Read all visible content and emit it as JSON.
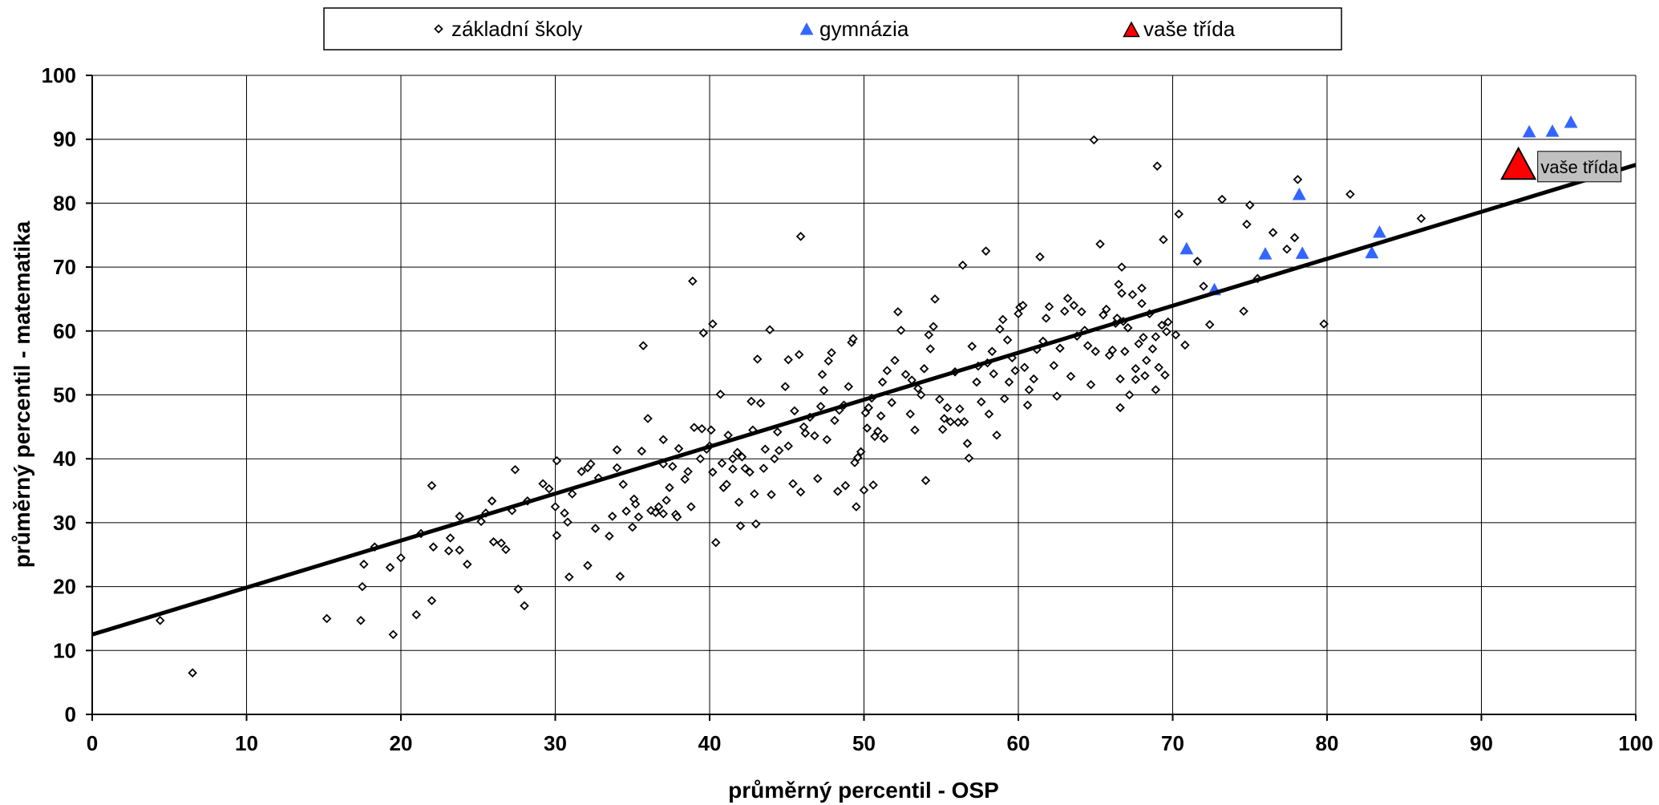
{
  "chart_data": {
    "type": "scatter",
    "xlabel": "průměrný percentil - OSP",
    "ylabel": "průměrný percentil - matematika",
    "xlim": [
      0,
      100
    ],
    "ylim": [
      0,
      100
    ],
    "x_ticks": [
      "0",
      "10",
      "20",
      "30",
      "40",
      "50",
      "60",
      "70",
      "80",
      "90",
      "100"
    ],
    "y_ticks": [
      "0",
      "10",
      "20",
      "30",
      "40",
      "50",
      "60",
      "70",
      "80",
      "90",
      "100"
    ],
    "grid": true,
    "legend_position": "top",
    "legend": [
      {
        "label": "základní školy",
        "marker": "diamond",
        "color": "#000000"
      },
      {
        "label": "gymnázia",
        "marker": "triangle",
        "color": "#3366ff"
      },
      {
        "label": "vaše třída",
        "marker": "triangle-large",
        "color": "#ff0000"
      }
    ],
    "trendline": {
      "x": [
        0,
        100
      ],
      "y": [
        12.5,
        86
      ]
    },
    "callout": {
      "label": "vaše třída"
    },
    "series": [
      {
        "name": "základní školy",
        "color": "#000000",
        "marker": "diamond",
        "points": [
          [
            4.4,
            14.7
          ],
          [
            6.5,
            6.5
          ],
          [
            15.2,
            15.0
          ],
          [
            17.4,
            14.7
          ],
          [
            17.5,
            20.0
          ],
          [
            17.6,
            23.5
          ],
          [
            18.3,
            26.2
          ],
          [
            19.3,
            23.0
          ],
          [
            19.5,
            12.5
          ],
          [
            20.0,
            24.5
          ],
          [
            21.0,
            15.6
          ],
          [
            21.3,
            28.3
          ],
          [
            22.0,
            35.8
          ],
          [
            22.1,
            26.2
          ],
          [
            22.0,
            17.8
          ],
          [
            23.1,
            25.6
          ],
          [
            23.2,
            27.6
          ],
          [
            23.8,
            31.0
          ],
          [
            23.8,
            25.7
          ],
          [
            24.3,
            23.5
          ],
          [
            25.2,
            30.2
          ],
          [
            25.5,
            31.5
          ],
          [
            25.9,
            33.4
          ],
          [
            26.0,
            27.0
          ],
          [
            26.5,
            26.8
          ],
          [
            26.8,
            25.8
          ],
          [
            27.2,
            31.9
          ],
          [
            27.4,
            38.3
          ],
          [
            27.6,
            19.6
          ],
          [
            28.0,
            17.0
          ],
          [
            28.2,
            33.4
          ],
          [
            29.2,
            36.1
          ],
          [
            29.6,
            35.3
          ],
          [
            30.0,
            32.5
          ],
          [
            30.1,
            28.0
          ],
          [
            30.1,
            39.7
          ],
          [
            30.6,
            31.5
          ],
          [
            30.8,
            30.1
          ],
          [
            30.9,
            21.5
          ],
          [
            31.1,
            34.5
          ],
          [
            31.7,
            38.0
          ],
          [
            32.1,
            23.3
          ],
          [
            32.1,
            38.6
          ],
          [
            32.3,
            39.2
          ],
          [
            32.6,
            29.1
          ],
          [
            32.8,
            37.0
          ],
          [
            33.5,
            27.9
          ],
          [
            33.7,
            31.0
          ],
          [
            34.0,
            41.4
          ],
          [
            34.0,
            38.6
          ],
          [
            34.2,
            21.6
          ],
          [
            34.4,
            36.0
          ],
          [
            34.6,
            31.8
          ],
          [
            35.0,
            29.3
          ],
          [
            35.1,
            33.7
          ],
          [
            35.2,
            32.9
          ],
          [
            35.4,
            30.9
          ],
          [
            35.6,
            41.2
          ],
          [
            35.7,
            57.7
          ],
          [
            36.0,
            46.3
          ],
          [
            36.2,
            31.9
          ],
          [
            36.5,
            31.6
          ],
          [
            36.7,
            32.5
          ],
          [
            37.0,
            31.4
          ],
          [
            37.0,
            39.2
          ],
          [
            37.0,
            43.0
          ],
          [
            37.2,
            33.5
          ],
          [
            37.4,
            35.5
          ],
          [
            37.6,
            38.8
          ],
          [
            37.8,
            31.3
          ],
          [
            37.9,
            30.9
          ],
          [
            38.0,
            41.6
          ],
          [
            38.4,
            36.8
          ],
          [
            38.6,
            38.0
          ],
          [
            38.8,
            32.5
          ],
          [
            38.9,
            67.8
          ],
          [
            39.0,
            44.9
          ],
          [
            39.4,
            40.0
          ],
          [
            39.5,
            44.7
          ],
          [
            39.6,
            59.7
          ],
          [
            39.8,
            41.5
          ],
          [
            40.0,
            42.0
          ],
          [
            40.1,
            44.5
          ],
          [
            40.2,
            61.1
          ],
          [
            40.2,
            37.9
          ],
          [
            40.4,
            26.9
          ],
          [
            40.7,
            50.1
          ],
          [
            40.8,
            39.3
          ],
          [
            40.9,
            35.5
          ],
          [
            41.1,
            36.0
          ],
          [
            41.2,
            43.7
          ],
          [
            41.5,
            40.0
          ],
          [
            41.5,
            38.4
          ],
          [
            41.8,
            41.0
          ],
          [
            41.9,
            33.2
          ],
          [
            42.0,
            29.5
          ],
          [
            42.1,
            40.3
          ],
          [
            42.3,
            38.5
          ],
          [
            42.6,
            37.9
          ],
          [
            42.7,
            49.0
          ],
          [
            42.8,
            44.5
          ],
          [
            42.9,
            34.5
          ],
          [
            43.0,
            29.8
          ],
          [
            43.1,
            55.6
          ],
          [
            43.3,
            48.7
          ],
          [
            43.5,
            38.5
          ],
          [
            43.6,
            41.5
          ],
          [
            43.9,
            60.2
          ],
          [
            44.0,
            34.4
          ],
          [
            44.2,
            40.0
          ],
          [
            44.4,
            44.2
          ],
          [
            44.5,
            41.3
          ],
          [
            44.9,
            51.3
          ],
          [
            45.1,
            42.0
          ],
          [
            45.1,
            55.5
          ],
          [
            45.4,
            36.1
          ],
          [
            45.5,
            47.5
          ],
          [
            45.8,
            56.3
          ],
          [
            45.9,
            34.8
          ],
          [
            45.9,
            74.8
          ],
          [
            46.1,
            45.0
          ],
          [
            46.2,
            44.0
          ],
          [
            46.5,
            46.5
          ],
          [
            46.8,
            43.6
          ],
          [
            47.0,
            36.9
          ],
          [
            47.2,
            48.2
          ],
          [
            47.3,
            53.2
          ],
          [
            47.4,
            50.7
          ],
          [
            47.6,
            43.0
          ],
          [
            47.7,
            55.3
          ],
          [
            47.9,
            56.6
          ],
          [
            48.1,
            46.0
          ],
          [
            48.3,
            34.9
          ],
          [
            48.4,
            47.6
          ],
          [
            48.7,
            48.4
          ],
          [
            48.8,
            35.8
          ],
          [
            49.0,
            51.3
          ],
          [
            49.2,
            58.2
          ],
          [
            49.3,
            58.8
          ],
          [
            49.4,
            39.4
          ],
          [
            49.5,
            32.5
          ],
          [
            49.6,
            40.2
          ],
          [
            49.8,
            41.1
          ],
          [
            50.0,
            35.1
          ],
          [
            50.1,
            47.2
          ],
          [
            50.2,
            44.8
          ],
          [
            50.3,
            48.0
          ],
          [
            50.5,
            49.5
          ],
          [
            50.6,
            35.9
          ],
          [
            50.7,
            43.5
          ],
          [
            50.9,
            44.3
          ],
          [
            51.1,
            46.7
          ],
          [
            51.2,
            52.0
          ],
          [
            51.3,
            43.2
          ],
          [
            51.5,
            53.8
          ],
          [
            51.8,
            48.8
          ],
          [
            52.0,
            55.4
          ],
          [
            52.2,
            63.0
          ],
          [
            52.4,
            60.1
          ],
          [
            52.7,
            53.2
          ],
          [
            53.0,
            47.0
          ],
          [
            53.1,
            52.3
          ],
          [
            53.3,
            44.5
          ],
          [
            53.5,
            51.0
          ],
          [
            53.7,
            50.0
          ],
          [
            53.9,
            54.1
          ],
          [
            54.0,
            36.6
          ],
          [
            54.2,
            59.4
          ],
          [
            54.3,
            57.2
          ],
          [
            54.5,
            60.7
          ],
          [
            54.6,
            65.0
          ],
          [
            54.9,
            49.3
          ],
          [
            55.1,
            44.6
          ],
          [
            55.2,
            46.3
          ],
          [
            55.4,
            48.0
          ],
          [
            55.6,
            45.8
          ],
          [
            55.9,
            53.6
          ],
          [
            56.1,
            45.7
          ],
          [
            56.2,
            47.8
          ],
          [
            56.4,
            70.3
          ],
          [
            56.5,
            45.8
          ],
          [
            56.7,
            42.4
          ],
          [
            56.8,
            40.1
          ],
          [
            57.0,
            57.6
          ],
          [
            57.3,
            52.0
          ],
          [
            57.4,
            54.5
          ],
          [
            57.6,
            48.9
          ],
          [
            57.9,
            72.5
          ],
          [
            58.0,
            55.0
          ],
          [
            58.1,
            47.0
          ],
          [
            58.3,
            56.8
          ],
          [
            58.4,
            53.3
          ],
          [
            58.6,
            43.7
          ],
          [
            58.8,
            60.3
          ],
          [
            59.0,
            61.8
          ],
          [
            59.1,
            49.4
          ],
          [
            59.3,
            58.6
          ],
          [
            59.4,
            52.0
          ],
          [
            59.6,
            55.8
          ],
          [
            59.8,
            53.8
          ],
          [
            60.0,
            62.7
          ],
          [
            60.1,
            63.7
          ],
          [
            60.3,
            64.0
          ],
          [
            60.4,
            54.3
          ],
          [
            60.6,
            48.4
          ],
          [
            60.7,
            50.8
          ],
          [
            61.0,
            52.5
          ],
          [
            61.2,
            57.1
          ],
          [
            61.4,
            71.6
          ],
          [
            61.6,
            58.4
          ],
          [
            61.8,
            62.0
          ],
          [
            62.0,
            63.8
          ],
          [
            62.3,
            54.6
          ],
          [
            62.5,
            49.8
          ],
          [
            62.7,
            57.3
          ],
          [
            63.0,
            63.1
          ],
          [
            63.2,
            65.1
          ],
          [
            63.4,
            52.9
          ],
          [
            63.6,
            64.0
          ],
          [
            63.8,
            59.2
          ],
          [
            64.1,
            63.0
          ],
          [
            64.3,
            60.1
          ],
          [
            64.5,
            57.7
          ],
          [
            64.7,
            51.6
          ],
          [
            65.0,
            56.8
          ],
          [
            65.3,
            73.6
          ],
          [
            65.5,
            62.5
          ],
          [
            65.7,
            63.4
          ],
          [
            65.9,
            56.2
          ],
          [
            66.1,
            57.0
          ],
          [
            66.3,
            61.2
          ],
          [
            66.5,
            67.3
          ],
          [
            66.7,
            65.9
          ],
          [
            66.9,
            56.8
          ],
          [
            67.1,
            60.5
          ],
          [
            67.4,
            65.7
          ],
          [
            67.6,
            52.4
          ],
          [
            67.8,
            58.0
          ],
          [
            68.0,
            66.7
          ],
          [
            68.2,
            53.0
          ],
          [
            68.3,
            55.4
          ],
          [
            68.5,
            62.7
          ],
          [
            68.7,
            57.2
          ],
          [
            68.9,
            50.8
          ],
          [
            69.1,
            54.3
          ],
          [
            69.3,
            60.9
          ],
          [
            69.5,
            53.1
          ],
          [
            69.7,
            61.4
          ],
          [
            64.9,
            89.9
          ],
          [
            66.6,
            48.0
          ],
          [
            66.7,
            70.0
          ],
          [
            66.8,
            61.5
          ],
          [
            66.4,
            62.0
          ],
          [
            66.6,
            52.5
          ],
          [
            67.2,
            50.0
          ],
          [
            67.6,
            54.1
          ],
          [
            68.0,
            64.3
          ],
          [
            68.1,
            59.0
          ],
          [
            68.9,
            59.1
          ],
          [
            69.0,
            85.8
          ],
          [
            69.4,
            74.3
          ],
          [
            69.6,
            59.9
          ],
          [
            70.2,
            59.4
          ],
          [
            70.4,
            78.3
          ],
          [
            70.8,
            57.8
          ],
          [
            71.6,
            70.9
          ],
          [
            72.0,
            67.0
          ],
          [
            72.4,
            61.0
          ],
          [
            73.2,
            80.6
          ],
          [
            74.6,
            63.1
          ],
          [
            74.8,
            76.7
          ],
          [
            75.0,
            79.7
          ],
          [
            75.5,
            68.2
          ],
          [
            76.5,
            75.4
          ],
          [
            77.4,
            72.8
          ],
          [
            77.9,
            74.6
          ],
          [
            78.1,
            83.7
          ],
          [
            79.8,
            61.1
          ],
          [
            81.5,
            81.4
          ],
          [
            86.1,
            77.6
          ]
        ]
      },
      {
        "name": "gymnázia",
        "color": "#3366ff",
        "marker": "triangle",
        "points": [
          [
            70.9,
            72.8
          ],
          [
            72.7,
            66.4
          ],
          [
            76.0,
            72.0
          ],
          [
            78.2,
            81.3
          ],
          [
            78.4,
            72.1
          ],
          [
            82.9,
            72.2
          ],
          [
            83.4,
            75.4
          ],
          [
            93.1,
            91.1
          ],
          [
            94.6,
            91.2
          ],
          [
            95.8,
            92.6
          ]
        ]
      },
      {
        "name": "vaše třída",
        "color": "#ff0000",
        "marker": "triangle-large",
        "points": [
          [
            92.4,
            85.6
          ]
        ]
      }
    ]
  }
}
